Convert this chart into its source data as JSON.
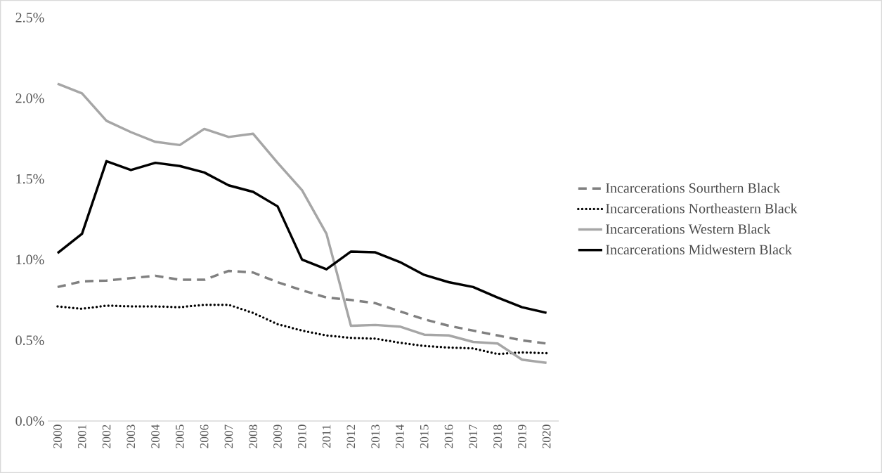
{
  "chart_data": {
    "type": "line",
    "categories": [
      "2000",
      "2001",
      "2002",
      "2003",
      "2004",
      "2005",
      "2006",
      "2007",
      "2008",
      "2009",
      "2010",
      "2011",
      "2012",
      "2013",
      "2014",
      "2015",
      "2016",
      "2017",
      "2018",
      "2019",
      "2020"
    ],
    "series": [
      {
        "name": "Incarcerations Sourthern Black",
        "color": "#808080",
        "line_style": "dashed",
        "values": [
          0.83,
          0.865,
          0.87,
          0.885,
          0.9,
          0.875,
          0.875,
          0.93,
          0.92,
          0.86,
          0.81,
          0.765,
          0.75,
          0.73,
          0.68,
          0.63,
          0.59,
          0.56,
          0.53,
          0.5,
          0.48
        ]
      },
      {
        "name": "Incarcerations Northeastern Black",
        "color": "#000000",
        "line_style": "dotted",
        "values": [
          0.71,
          0.695,
          0.715,
          0.71,
          0.71,
          0.705,
          0.72,
          0.72,
          0.67,
          0.6,
          0.56,
          0.53,
          0.515,
          0.51,
          0.485,
          0.465,
          0.455,
          0.45,
          0.415,
          0.425,
          0.42
        ]
      },
      {
        "name": "Incarcerations Western Black",
        "color": "#a6a6a6",
        "line_style": "solid",
        "values": [
          2.09,
          2.03,
          1.86,
          1.79,
          1.73,
          1.71,
          1.81,
          1.76,
          1.78,
          1.6,
          1.43,
          1.16,
          0.59,
          0.595,
          0.585,
          0.535,
          0.53,
          0.49,
          0.48,
          0.38,
          0.36
        ]
      },
      {
        "name": "Incarcerations Midwestern Black",
        "color": "#000000",
        "line_style": "solid",
        "values": [
          1.04,
          1.16,
          1.61,
          1.555,
          1.6,
          1.58,
          1.54,
          1.46,
          1.42,
          1.33,
          1.0,
          0.94,
          1.05,
          1.045,
          0.985,
          0.905,
          0.86,
          0.83,
          0.765,
          0.705,
          0.67
        ]
      }
    ],
    "ylim": [
      0,
      2.5
    ],
    "yticks": [
      {
        "value": 0,
        "label": "0.0%"
      },
      {
        "value": 0.5,
        "label": "0.5%"
      },
      {
        "value": 1.0,
        "label": "1.0%"
      },
      {
        "value": 1.5,
        "label": "1.5%"
      },
      {
        "value": 2.0,
        "label": "2.0%"
      },
      {
        "value": 2.5,
        "label": "2.5%"
      }
    ],
    "grid": false,
    "legend": "right",
    "marker": "none"
  }
}
